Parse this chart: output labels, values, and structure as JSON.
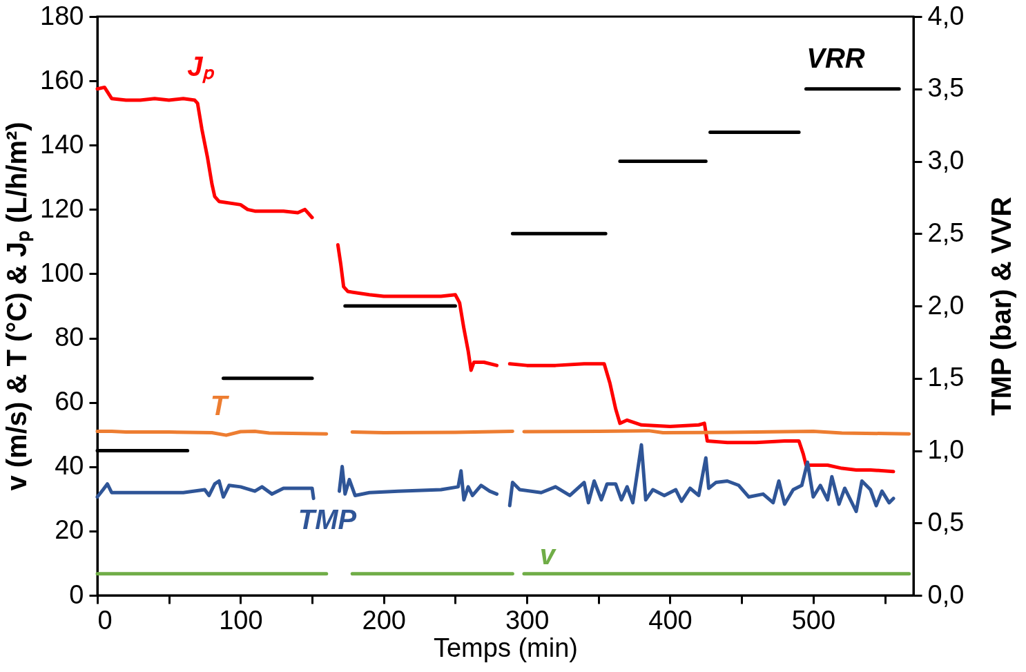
{
  "chart_data": {
    "type": "line",
    "xlabel": "Temps (min)",
    "ylabel": "v (m/s) & T (°C) & Jₚ (L/h/m²)",
    "y2label": "TMP (bar) & VVR",
    "xlim": [
      0,
      570
    ],
    "xticks": [
      0,
      {
        "value": 50,
        "label": null
      },
      100,
      {
        "value": 150,
        "label": null
      },
      200,
      {
        "value": 250,
        "label": null
      },
      300,
      {
        "value": 350,
        "label": null
      },
      400,
      {
        "value": 450,
        "label": null
      },
      500,
      {
        "value": 550,
        "label": null
      }
    ],
    "ylim": [
      0,
      180
    ],
    "yticks": [
      0,
      20,
      40,
      60,
      80,
      100,
      120,
      140,
      160,
      180
    ],
    "y2lim": [
      0,
      4
    ],
    "y2ticks": [
      {
        "value": 0,
        "label": "0,0"
      },
      {
        "value": 0.5,
        "label": "0,5"
      },
      {
        "value": 1,
        "label": "1,0"
      },
      {
        "value": 1.5,
        "label": "1,5"
      },
      {
        "value": 2,
        "label": "2,0"
      },
      {
        "value": 2.5,
        "label": "2,5"
      },
      {
        "value": 3,
        "label": "3,0"
      },
      {
        "value": 3.5,
        "label": "3,5"
      },
      {
        "value": 4,
        "label": "4,0"
      }
    ],
    "series": [
      {
        "name": "Jₚ",
        "color": "#ff0000",
        "x": [
          0,
          5,
          10,
          20,
          30,
          40,
          50,
          60,
          68,
          70,
          73,
          77,
          80,
          82,
          85,
          100,
          105,
          110,
          120,
          130,
          140,
          145,
          150,
          155,
          168,
          170,
          172,
          175,
          190,
          200,
          220,
          240,
          250,
          253,
          256,
          259,
          261,
          263,
          270,
          279,
          284,
          288,
          300,
          320,
          340,
          354,
          358,
          362,
          365,
          370,
          380,
          400,
          420,
          424,
          426,
          440,
          460,
          480,
          490,
          493,
          495,
          510,
          520,
          530,
          540,
          556
        ],
        "values": [
          157.5,
          158,
          154.5,
          154,
          154,
          154.5,
          154,
          154.5,
          154,
          153,
          145,
          136,
          128,
          124,
          122.5,
          121.5,
          120,
          119.5,
          119.5,
          119.5,
          119,
          120,
          117.5,
          null,
          109,
          103,
          96,
          94.5,
          93.5,
          93,
          93,
          93,
          93.5,
          91,
          83,
          76,
          70,
          72.5,
          72.5,
          71.5,
          null,
          72,
          71.5,
          71.5,
          72,
          72,
          66,
          58,
          53.5,
          54.5,
          53,
          52.5,
          53,
          53.5,
          48,
          47.5,
          47.5,
          48,
          48,
          44,
          40.5,
          40.5,
          39.5,
          39,
          39,
          38.5
        ]
      },
      {
        "name": "T",
        "color": "#ed7d31",
        "x": [
          0,
          10,
          20,
          50,
          80,
          90,
          100,
          110,
          120,
          160,
          169,
          178,
          200,
          250,
          290,
          294,
          298,
          350,
          385,
          395,
          440,
          500,
          520,
          567
        ],
        "values": [
          51,
          51,
          50.8,
          50.8,
          50.6,
          49.8,
          50.9,
          51,
          50.5,
          50.2,
          null,
          50.8,
          50.6,
          50.7,
          51,
          null,
          50.9,
          51,
          51.2,
          50.6,
          50.7,
          51,
          50.5,
          50.2
        ]
      },
      {
        "name": "v",
        "color": "#70ad47",
        "x": [
          0,
          160,
          169,
          178,
          290,
          294,
          298,
          567
        ],
        "values": [
          6.7,
          6.7,
          null,
          6.7,
          6.7,
          null,
          6.7,
          6.7
        ]
      },
      {
        "name": "TMP",
        "color": "#2f5597",
        "axis": "y2",
        "x": [
          0,
          4,
          7,
          10,
          30,
          60,
          75,
          78,
          82,
          85,
          88,
          92,
          100,
          110,
          115,
          122,
          130,
          140,
          150,
          151,
          160,
          169,
          171,
          173,
          176,
          180,
          190,
          210,
          240,
          252,
          254,
          256,
          259,
          262,
          268,
          274,
          279,
          284,
          288,
          290,
          295,
          310,
          320,
          330,
          340,
          343,
          347,
          352,
          356,
          362,
          366,
          370,
          374,
          380,
          383,
          388,
          396,
          404,
          408,
          414,
          420,
          425,
          427,
          432,
          440,
          448,
          455,
          465,
          472,
          476,
          480,
          486,
          492,
          496,
          500,
          505,
          510,
          513,
          518,
          522,
          530,
          534,
          540,
          544,
          548,
          553,
          556
        ],
        "values": [
          0.68,
          0.73,
          0.77,
          0.71,
          0.71,
          0.71,
          0.73,
          0.69,
          0.77,
          0.79,
          0.68,
          0.76,
          0.75,
          0.72,
          0.75,
          0.7,
          0.74,
          0.74,
          0.74,
          0.67,
          null,
          0.72,
          0.89,
          0.7,
          0.8,
          0.69,
          0.71,
          0.72,
          0.73,
          0.75,
          0.86,
          0.66,
          0.75,
          0.69,
          0.76,
          0.72,
          0.7,
          null,
          0.62,
          0.78,
          0.73,
          0.71,
          0.75,
          0.69,
          0.78,
          0.64,
          0.79,
          0.66,
          0.77,
          0.77,
          0.66,
          0.75,
          0.64,
          1.04,
          0.66,
          0.73,
          0.69,
          0.73,
          0.65,
          0.74,
          0.69,
          0.95,
          0.74,
          0.78,
          0.79,
          0.76,
          0.68,
          0.7,
          0.64,
          0.79,
          0.63,
          0.73,
          0.76,
          0.92,
          0.68,
          0.76,
          0.66,
          0.82,
          0.63,
          0.74,
          0.58,
          0.79,
          0.73,
          0.62,
          0.72,
          0.64,
          0.67
        ]
      },
      {
        "name": "VRR",
        "color": "#000000",
        "axis": "y2",
        "x": [
          0,
          63,
          75,
          88,
          150,
          160,
          173,
          250,
          270,
          290,
          355,
          360,
          365,
          425,
          426.5,
          428,
          490,
          492,
          495,
          560
        ],
        "values": [
          1.0,
          1.0,
          null,
          1.5,
          1.5,
          null,
          2.0,
          2.0,
          null,
          2.5,
          2.5,
          null,
          3.0,
          3.0,
          null,
          3.2,
          3.2,
          null,
          3.5,
          3.5
        ]
      }
    ]
  }
}
